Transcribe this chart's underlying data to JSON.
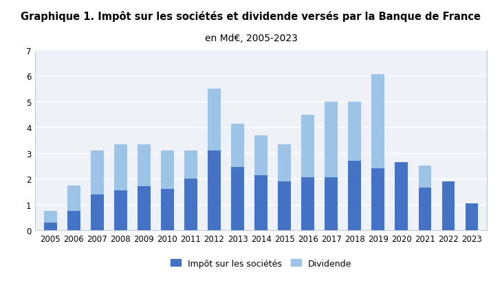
{
  "years": [
    2005,
    2006,
    2007,
    2008,
    2009,
    2010,
    2011,
    2012,
    2013,
    2014,
    2015,
    2016,
    2017,
    2018,
    2019,
    2020,
    2021,
    2022,
    2023
  ],
  "impot": [
    0.3,
    0.75,
    1.4,
    1.55,
    1.7,
    1.6,
    2.0,
    3.1,
    2.45,
    2.15,
    1.9,
    2.05,
    2.05,
    2.7,
    2.4,
    2.65,
    1.65,
    1.9,
    1.05
  ],
  "dividende": [
    0.45,
    1.0,
    1.7,
    1.8,
    1.65,
    1.5,
    1.1,
    2.4,
    1.7,
    1.55,
    1.45,
    2.45,
    2.95,
    2.3,
    3.65,
    0.0,
    0.85,
    0.0,
    0.0
  ],
  "color_impot": "#4472C4",
  "color_dividende": "#9DC3E6",
  "title_line1": "Graphique 1. Impôt sur les sociétés et dividende versés par la Banque de France",
  "title_line2": "en Md€, 2005-2023",
  "legend_impot": "Impôt sur les sociétés",
  "legend_dividende": "Dividende",
  "ylim": [
    0,
    7
  ],
  "yticks": [
    0,
    1,
    2,
    3,
    4,
    5,
    6,
    7
  ],
  "background_color": "#ffffff",
  "plot_bg_color": "#EEF2F8",
  "grid_color": "#ffffff",
  "bar_width": 0.55,
  "title_fontsize": 10.5,
  "subtitle_fontsize": 10,
  "tick_fontsize": 8.5,
  "legend_fontsize": 9
}
